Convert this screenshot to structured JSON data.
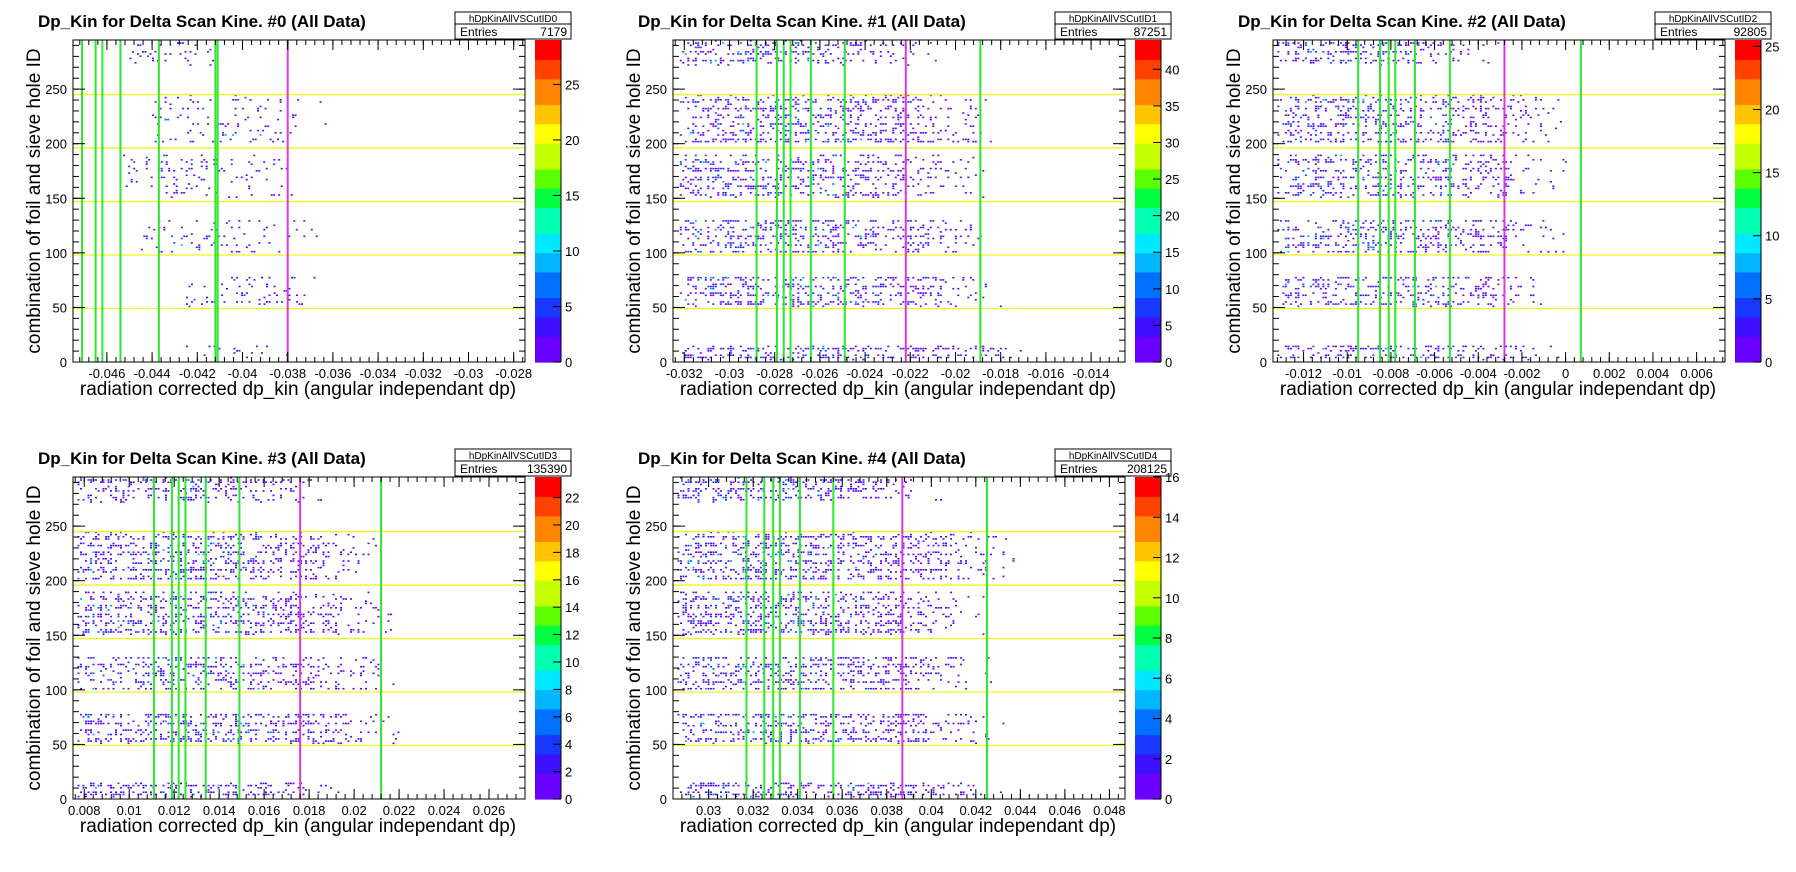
{
  "chart_data": [
    {
      "type": "heatmap",
      "title": "Dp_Kin for Delta Scan Kine. #0 (All Data)",
      "hist_name": "hDpKinAllVSCutID0",
      "entries_label": "Entries",
      "entries_value": "7179",
      "xlabel": "radiation corrected dp_kin (angular independant dp)",
      "ylabel": "combination of foil and sieve hole ID",
      "xlim": [
        -0.0475,
        -0.0275
      ],
      "ylim": [
        0,
        295
      ],
      "x_ticks": [
        "-0.046",
        "-0.044",
        "-0.042",
        "-0.04",
        "-0.038",
        "-0.036",
        "-0.034",
        "-0.032",
        "-0.03",
        "-0.028"
      ],
      "y_ticks": [
        "0",
        "50",
        "100",
        "150",
        "200",
        "250"
      ],
      "z_max": 29,
      "z_ticks": [
        "0",
        "5",
        "10",
        "15",
        "20",
        "25"
      ],
      "foil_bands": [
        {
          "y0": 1,
          "y1": 15,
          "x0": -0.0425,
          "x1": -0.0375
        },
        {
          "y0": 50,
          "y1": 78,
          "x0": -0.0425,
          "x1": -0.0365
        },
        {
          "y0": 100,
          "y1": 130,
          "x0": -0.0445,
          "x1": -0.0365
        },
        {
          "y0": 150,
          "y1": 190,
          "x0": -0.0455,
          "x1": -0.037
        },
        {
          "y0": 200,
          "y1": 245,
          "x0": -0.044,
          "x1": -0.036
        },
        {
          "y0": 270,
          "y1": 295,
          "x0": -0.045,
          "x1": -0.04
        }
      ],
      "green_lines": [
        -0.0471,
        -0.0465,
        -0.0462,
        -0.0454,
        -0.0437,
        -0.0412,
        -0.0411
      ],
      "magenta_line": -0.038,
      "yellow_lines": [
        49,
        98,
        147,
        196,
        245
      ]
    },
    {
      "type": "heatmap",
      "title": "Dp_Kin for Delta Scan Kine. #1 (All Data)",
      "hist_name": "hDpKinAllVSCutID1",
      "entries_label": "Entries",
      "entries_value": "87251",
      "xlabel": "radiation corrected dp_kin (angular independant dp)",
      "ylabel": "combination of foil and sieve hole ID",
      "xlim": [
        -0.0325,
        -0.0125
      ],
      "ylim": [
        0,
        295
      ],
      "x_ticks": [
        "-0.032",
        "-0.03",
        "-0.028",
        "-0.026",
        "-0.024",
        "-0.022",
        "-0.02",
        "-0.018",
        "-0.016",
        "-0.014"
      ],
      "y_ticks": [
        "0",
        "50",
        "100",
        "150",
        "200",
        "250"
      ],
      "z_max": 44,
      "z_ticks": [
        "0",
        "5",
        "10",
        "15",
        "20",
        "25",
        "30",
        "35",
        "40"
      ],
      "foil_bands": [
        {
          "y0": 1,
          "y1": 15,
          "x0": -0.0322,
          "x1": -0.0165
        },
        {
          "y0": 50,
          "y1": 78,
          "x0": -0.0322,
          "x1": -0.0175
        },
        {
          "y0": 100,
          "y1": 130,
          "x0": -0.0322,
          "x1": -0.018
        },
        {
          "y0": 150,
          "y1": 190,
          "x0": -0.0322,
          "x1": -0.0185
        },
        {
          "y0": 200,
          "y1": 245,
          "x0": -0.0322,
          "x1": -0.018
        },
        {
          "y0": 270,
          "y1": 295,
          "x0": -0.0322,
          "x1": -0.0205
        }
      ],
      "green_lines": [
        -0.0288,
        -0.0279,
        -0.0276,
        -0.0273,
        -0.0264,
        -0.0249,
        -0.0189
      ],
      "magenta_line": -0.0222,
      "yellow_lines": [
        49,
        98,
        147,
        196,
        245
      ]
    },
    {
      "type": "heatmap",
      "title": "Dp_Kin for Delta Scan Kine. #2 (All Data)",
      "hist_name": "hDpKinAllVSCutID2",
      "entries_label": "Entries",
      "entries_value": "92805",
      "xlabel": "radiation corrected dp_kin (angular independant dp)",
      "ylabel": "combination of foil and sieve hole ID",
      "xlim": [
        -0.0134,
        0.0073
      ],
      "ylim": [
        0,
        295
      ],
      "x_ticks": [
        "-0.012",
        "-0.01",
        "-0.008",
        "-0.006",
        "-0.004",
        "-0.002",
        "0",
        "0.002",
        "0.004",
        "0.006"
      ],
      "y_ticks": [
        "0",
        "50",
        "100",
        "150",
        "200",
        "250"
      ],
      "z_max": 25.5,
      "z_ticks": [
        "0",
        "5",
        "10",
        "15",
        "20",
        "25"
      ],
      "foil_bands": [
        {
          "y0": 1,
          "y1": 15,
          "x0": -0.0132,
          "x1": 0.0
        },
        {
          "y0": 50,
          "y1": 78,
          "x0": -0.0132,
          "x1": -0.0005
        },
        {
          "y0": 100,
          "y1": 130,
          "x0": -0.0132,
          "x1": 0.0005
        },
        {
          "y0": 150,
          "y1": 190,
          "x0": -0.0132,
          "x1": 0.0003
        },
        {
          "y0": 200,
          "y1": 245,
          "x0": -0.0132,
          "x1": 0.0003
        },
        {
          "y0": 270,
          "y1": 295,
          "x0": -0.0132,
          "x1": -0.003
        }
      ],
      "green_lines": [
        -0.0095,
        -0.0085,
        -0.0081,
        -0.0078,
        -0.0069,
        -0.0053,
        0.0007
      ],
      "magenta_line": -0.0028,
      "yellow_lines": [
        49,
        98,
        147,
        196,
        245
      ]
    },
    {
      "type": "heatmap",
      "title": "Dp_Kin for Delta Scan Kine. #3 (All Data)",
      "hist_name": "hDpKinAllVSCutID3",
      "entries_label": "Entries",
      "entries_value": "135390",
      "xlabel": "radiation corrected dp_kin (angular independant dp)",
      "ylabel": "combination of foil and sieve hole ID",
      "xlim": [
        0.0075,
        0.0276
      ],
      "ylim": [
        0,
        295
      ],
      "x_ticks": [
        "0.008",
        "0.01",
        "0.012",
        "0.014",
        "0.016",
        "0.018",
        "0.02",
        "0.022",
        "0.024",
        "0.026"
      ],
      "y_ticks": [
        "0",
        "50",
        "100",
        "150",
        "200",
        "250"
      ],
      "z_max": 23.5,
      "z_ticks": [
        "0",
        "2",
        "4",
        "6",
        "8",
        "10",
        "12",
        "14",
        "16",
        "18",
        "20",
        "22"
      ],
      "foil_bands": [
        {
          "y0": 1,
          "y1": 15,
          "x0": 0.0077,
          "x1": 0.02
        },
        {
          "y0": 50,
          "y1": 78,
          "x0": 0.0077,
          "x1": 0.0225
        },
        {
          "y0": 100,
          "y1": 130,
          "x0": 0.0077,
          "x1": 0.0222
        },
        {
          "y0": 150,
          "y1": 190,
          "x0": 0.0077,
          "x1": 0.022
        },
        {
          "y0": 200,
          "y1": 245,
          "x0": 0.0077,
          "x1": 0.0215
        },
        {
          "y0": 270,
          "y1": 295,
          "x0": 0.0077,
          "x1": 0.019
        }
      ],
      "green_lines": [
        0.0111,
        0.0119,
        0.0122,
        0.0125,
        0.0134,
        0.0149,
        0.0212
      ],
      "magenta_line": 0.0176,
      "yellow_lines": [
        49,
        98,
        147,
        196,
        245
      ]
    },
    {
      "type": "heatmap",
      "title": "Dp_Kin for Delta Scan Kine. #4 (All Data)",
      "hist_name": "hDpKinAllVSCutID4",
      "entries_label": "Entries",
      "entries_value": "208125",
      "xlabel": "radiation corrected dp_kin (angular independant dp)",
      "ylabel": "combination of foil and sieve hole ID",
      "xlim": [
        0.0284,
        0.0487
      ],
      "ylim": [
        0,
        295
      ],
      "x_ticks": [
        "0.03",
        "0.032",
        "0.034",
        "0.036",
        "0.038",
        "0.04",
        "0.042",
        "0.044",
        "0.046",
        "0.048"
      ],
      "y_ticks": [
        "0",
        "50",
        "100",
        "150",
        "200",
        "250"
      ],
      "z_max": 16,
      "z_ticks": [
        "0",
        "2",
        "4",
        "6",
        "8",
        "10",
        "12",
        "14",
        "16"
      ],
      "foil_bands": [
        {
          "y0": 1,
          "y1": 15,
          "x0": 0.0286,
          "x1": 0.044
        },
        {
          "y0": 50,
          "y1": 78,
          "x0": 0.0286,
          "x1": 0.0438
        },
        {
          "y0": 100,
          "y1": 130,
          "x0": 0.0286,
          "x1": 0.0432
        },
        {
          "y0": 150,
          "y1": 190,
          "x0": 0.0286,
          "x1": 0.0427
        },
        {
          "y0": 200,
          "y1": 245,
          "x0": 0.0286,
          "x1": 0.044
        },
        {
          "y0": 270,
          "y1": 295,
          "x0": 0.0286,
          "x1": 0.0405
        }
      ],
      "green_lines": [
        0.0317,
        0.0325,
        0.0329,
        0.0332,
        0.0341,
        0.0356,
        0.0425
      ],
      "magenta_line": 0.0387,
      "yellow_lines": [
        49,
        98,
        147,
        196,
        245
      ]
    }
  ],
  "colors": {
    "green_line": "#2ee62e",
    "magenta_line": "#d63be0",
    "yellow_line": "#f2f21e",
    "palette": [
      "#6a00ff",
      "#2a1cff",
      "#0051ff",
      "#00a8ff",
      "#00ffd0",
      "#00ff3a",
      "#a8ff00",
      "#ffee00",
      "#ff9a00",
      "#ff2a00"
    ]
  }
}
